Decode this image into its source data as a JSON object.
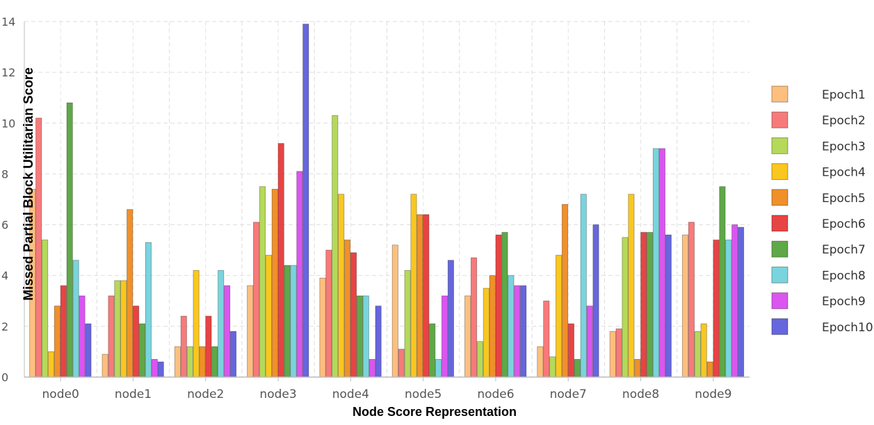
{
  "chart_data": {
    "type": "bar",
    "xlabel": "Node Score Representation",
    "ylabel": "Missed Partial Block Utilitarian Score",
    "ylim": [
      0,
      14
    ],
    "yticks": [
      0,
      2,
      4,
      6,
      8,
      10,
      12,
      14
    ],
    "grid": true,
    "legend_position": "right",
    "categories": [
      "node0",
      "node1",
      "node2",
      "node3",
      "node4",
      "node5",
      "node6",
      "node7",
      "node8",
      "node9"
    ],
    "series": [
      {
        "name": "Epoch1",
        "color": "#fdbf7f",
        "values": [
          7.4,
          0.9,
          1.2,
          3.6,
          3.9,
          5.2,
          3.2,
          1.2,
          1.8,
          5.6
        ]
      },
      {
        "name": "Epoch2",
        "color": "#f77a7a",
        "values": [
          10.2,
          3.2,
          2.4,
          6.1,
          5.0,
          1.1,
          4.7,
          3.0,
          1.9,
          6.1
        ]
      },
      {
        "name": "Epoch3",
        "color": "#b5d95a",
        "values": [
          5.4,
          3.8,
          1.2,
          7.5,
          10.3,
          4.2,
          1.4,
          0.8,
          5.5,
          1.8
        ]
      },
      {
        "name": "Epoch4",
        "color": "#f9c71f",
        "values": [
          1.0,
          3.8,
          4.2,
          4.8,
          7.2,
          7.2,
          3.5,
          4.8,
          7.2,
          2.1
        ]
      },
      {
        "name": "Epoch5",
        "color": "#f0902a",
        "values": [
          2.8,
          6.6,
          1.2,
          7.4,
          5.4,
          6.4,
          4.0,
          6.8,
          0.7,
          0.6
        ]
      },
      {
        "name": "Epoch6",
        "color": "#e74444",
        "values": [
          3.6,
          2.8,
          2.4,
          9.2,
          4.9,
          6.4,
          5.6,
          2.1,
          5.7,
          5.4
        ]
      },
      {
        "name": "Epoch7",
        "color": "#5fa848",
        "values": [
          10.8,
          2.1,
          1.2,
          4.4,
          3.2,
          2.1,
          5.7,
          0.7,
          5.7,
          7.5
        ]
      },
      {
        "name": "Epoch8",
        "color": "#79d4dd",
        "values": [
          4.6,
          5.3,
          4.2,
          4.4,
          3.2,
          0.7,
          4.0,
          7.2,
          9.0,
          5.4
        ]
      },
      {
        "name": "Epoch9",
        "color": "#db55f0",
        "values": [
          3.2,
          0.7,
          3.6,
          8.1,
          0.7,
          3.2,
          3.6,
          2.8,
          9.0,
          6.0
        ]
      },
      {
        "name": "Epoch10",
        "color": "#6666dd",
        "values": [
          2.1,
          0.6,
          1.8,
          13.9,
          2.8,
          4.6,
          3.6,
          6.0,
          5.6,
          5.9
        ]
      }
    ]
  }
}
